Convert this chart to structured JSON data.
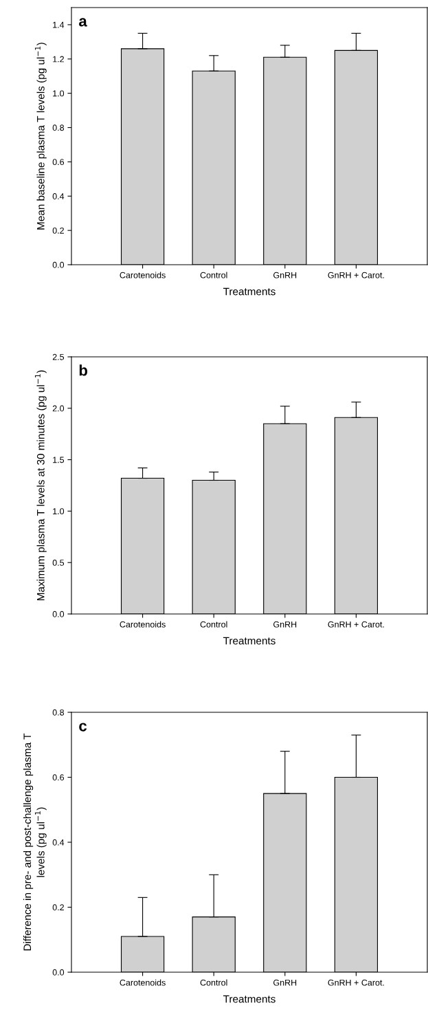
{
  "chart_data": [
    {
      "type": "bar",
      "categories": [
        "Carotenoids",
        "Control",
        "GnRH",
        "GnRH + Carot."
      ],
      "values": [
        1.26,
        1.13,
        1.21,
        1.25
      ],
      "errors": [
        [
          1.26,
          1.35
        ],
        [
          1.13,
          1.22
        ],
        [
          1.21,
          1.28
        ],
        [
          1.25,
          1.35
        ]
      ],
      "color": "#d0d0d0",
      "xlabel": "Treatments",
      "ylabel": "Mean baseline plasma T levels (pg ul$^{−1}$)",
      "ylim": [
        0,
        1.5
      ],
      "yticks": [
        {
          "value": 0,
          "label": "0.0"
        },
        0.2,
        0.4,
        0.6,
        0.8,
        {
          "value": 1,
          "label": "1.0"
        },
        1.2,
        1.4
      ],
      "annotations": [
        "a"
      ],
      "grid": false,
      "legend": false
    },
    {
      "type": "bar",
      "categories": [
        "Carotenoids",
        "Control",
        "GnRH",
        "GnRH + Carot."
      ],
      "values": [
        1.32,
        1.3,
        1.85,
        1.91
      ],
      "errors": [
        [
          1.32,
          1.42
        ],
        [
          1.3,
          1.38
        ],
        [
          1.85,
          2.02
        ],
        [
          1.91,
          2.06
        ]
      ],
      "color": "#d0d0d0",
      "xlabel": "Treatments",
      "ylabel": "Maximum plasma T levels at 30 minutes (pg ul$^{−1}$)",
      "ylim": [
        0,
        2.5
      ],
      "yticks": [
        {
          "value": 0,
          "label": "0.0"
        },
        0.5,
        {
          "value": 1,
          "label": "1.0"
        },
        1.5,
        {
          "value": 2,
          "label": "2.0"
        },
        2.5
      ],
      "annotations": [
        "b"
      ],
      "grid": false,
      "legend": false
    },
    {
      "type": "bar",
      "categories": [
        "Carotenoids",
        "Control",
        "GnRH",
        "GnRH + Carot."
      ],
      "values": [
        0.11,
        0.17,
        0.55,
        0.6
      ],
      "errors": [
        [
          0.11,
          0.23
        ],
        [
          0.17,
          0.3
        ],
        [
          0.55,
          0.68
        ],
        [
          0.6,
          0.73
        ]
      ],
      "color": "#d0d0d0",
      "xlabel": "Treatments",
      "ylabel": "Difference in pre- and post-challenge plasma T\nlevels (pg ul$^{−1}$)",
      "ylim": [
        0,
        0.8
      ],
      "yticks": [
        {
          "value": 0,
          "label": "0.0"
        },
        0.2,
        0.4,
        0.6,
        0.8
      ],
      "annotations": [
        "c"
      ],
      "grid": false,
      "legend": false
    }
  ]
}
